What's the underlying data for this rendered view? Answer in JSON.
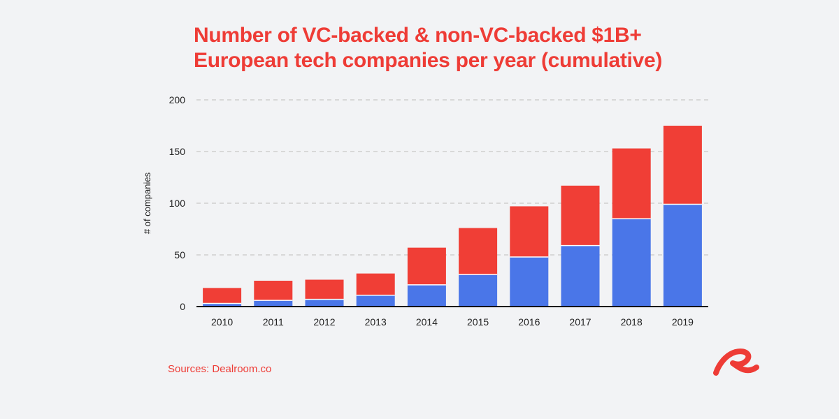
{
  "colors": {
    "background": "#f2f3f5",
    "vc_backed": "#4a76e8",
    "non_vc_backed": "#f03e36",
    "accent": "#ee3c36",
    "grid": "#c8c8c8",
    "axis": "#111111"
  },
  "logo_icon": "dealroom-logo-icon",
  "source": "Sources: Dealroom.co",
  "chart_data": {
    "type": "bar",
    "stacked": true,
    "title": [
      "Number of VC-backed & non-VC-backed $1B+",
      "European tech companies per year (cumulative)"
    ],
    "xlabel": "",
    "ylabel": "# of companies",
    "categories": [
      "2010",
      "2011",
      "2012",
      "2013",
      "2014",
      "2015",
      "2016",
      "2017",
      "2018",
      "2019"
    ],
    "series": [
      {
        "name": "VC-backed",
        "color": "#4a76e8",
        "values": [
          3,
          6,
          7,
          11,
          21,
          31,
          48,
          59,
          85,
          99
        ]
      },
      {
        "name": "non-VC-backed",
        "color": "#f03e36",
        "values": [
          15,
          19,
          19,
          21,
          36,
          45,
          49,
          58,
          68,
          76
        ]
      }
    ],
    "ylim": [
      0,
      200
    ],
    "yticks": [
      "0",
      "50",
      "100",
      "150",
      "200"
    ],
    "grid": true,
    "legend": "none"
  }
}
